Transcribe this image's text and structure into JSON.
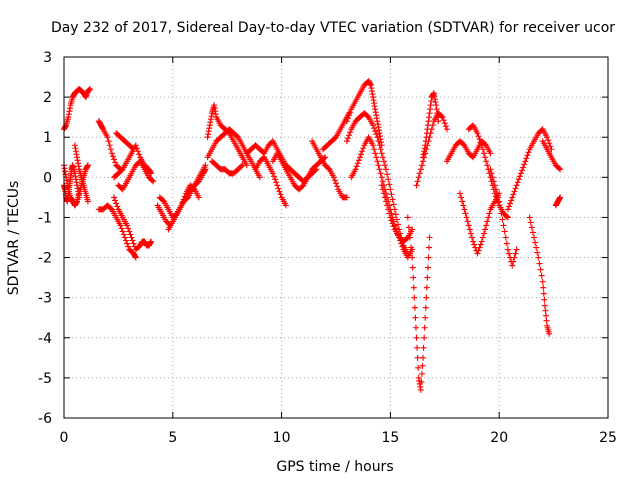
{
  "chart_data": {
    "type": "scatter",
    "title": "Day 232 of 2017, Sidereal Day-to-day VTEC variation (SDTVAR) for receiver ucor",
    "xlabel": "GPS time / hours",
    "ylabel": "SDTVAR / TECUs",
    "xlim": [
      0,
      25
    ],
    "ylim": [
      -6,
      3
    ],
    "xticks": [
      0,
      5,
      10,
      15,
      20,
      25
    ],
    "xtick_labels": [
      "0",
      "5",
      "10",
      "15",
      "20",
      "25"
    ],
    "yticks": [
      -6,
      -5,
      -4,
      -3,
      -2,
      -1,
      0,
      1,
      2,
      3
    ],
    "ytick_labels": [
      "-6",
      "-5",
      "-4",
      "-3",
      "-2",
      "-1",
      "0",
      "1",
      "2",
      "3"
    ],
    "grid": true,
    "marker": "+",
    "color": "#ff0000",
    "series": [
      {
        "name": "s1",
        "x": [
          0.0,
          0.1,
          0.2,
          0.3,
          0.4,
          0.5,
          0.6,
          0.7,
          0.8,
          0.9,
          1.0,
          1.1,
          1.2
        ],
        "y": [
          1.2,
          1.3,
          1.5,
          1.8,
          2.0,
          2.1,
          2.15,
          2.2,
          2.15,
          2.1,
          2.0,
          2.15,
          2.2
        ]
      },
      {
        "name": "s2",
        "x": [
          0.0,
          0.1,
          0.2,
          0.3,
          0.4,
          0.5,
          0.6,
          0.7,
          0.8,
          0.9,
          1.0,
          1.1
        ],
        "y": [
          0.3,
          0.0,
          -0.3,
          -0.5,
          -0.6,
          -0.7,
          -0.6,
          -0.4,
          -0.2,
          0.0,
          0.2,
          0.3
        ]
      },
      {
        "name": "s3",
        "x": [
          0.0,
          0.05,
          0.1,
          0.15,
          0.2,
          0.25,
          0.3,
          0.35,
          0.4,
          0.5,
          0.6,
          0.7
        ],
        "y": [
          -0.2,
          -0.3,
          -0.5,
          -0.6,
          -0.4,
          -0.2,
          0.0,
          0.2,
          0.3,
          0.1,
          -0.2,
          -0.5
        ]
      },
      {
        "name": "s4",
        "x": [
          0.5,
          0.6,
          0.7,
          0.8,
          0.9,
          1.0,
          1.1
        ],
        "y": [
          0.8,
          0.5,
          0.2,
          0.0,
          -0.2,
          -0.4,
          -0.6
        ]
      },
      {
        "name": "s5",
        "x": [
          1.6,
          1.7,
          1.8,
          2.0,
          2.2,
          2.4,
          2.6
        ],
        "y": [
          1.4,
          1.3,
          1.2,
          1.0,
          0.6,
          0.3,
          0.2
        ]
      },
      {
        "name": "s6",
        "x": [
          1.6,
          1.8,
          2.0,
          2.2,
          2.4,
          2.6,
          2.8,
          3.0,
          3.2,
          3.3
        ],
        "y": [
          -0.8,
          -0.8,
          -0.7,
          -0.8,
          -1.0,
          -1.2,
          -1.5,
          -1.8,
          -1.9,
          -2.0
        ]
      },
      {
        "name": "s7",
        "x": [
          2.3,
          2.5,
          2.7,
          2.9,
          3.1,
          3.3,
          3.5,
          3.6,
          3.7,
          3.8,
          3.9,
          4.0
        ],
        "y": [
          -0.5,
          -0.8,
          -1.0,
          -1.2,
          -1.5,
          -1.8,
          -1.7,
          -1.6,
          -1.6,
          -1.7,
          -1.7,
          -1.6
        ]
      },
      {
        "name": "s8",
        "x": [
          2.3,
          2.5,
          2.7,
          2.9,
          3.1,
          3.3,
          3.5,
          3.7,
          3.9,
          4.0
        ],
        "y": [
          0.0,
          0.1,
          0.2,
          0.4,
          0.6,
          0.8,
          0.5,
          0.3,
          0.2,
          0.1
        ]
      },
      {
        "name": "s9",
        "x": [
          2.4,
          2.6,
          2.8,
          3.0,
          3.2
        ],
        "y": [
          1.1,
          1.0,
          0.9,
          0.8,
          0.7
        ]
      },
      {
        "name": "s10",
        "x": [
          2.5,
          2.7,
          2.9,
          3.1,
          3.3,
          3.5,
          3.7,
          3.9,
          4.1
        ],
        "y": [
          -0.2,
          -0.3,
          -0.1,
          0.1,
          0.3,
          0.4,
          0.2,
          0.0,
          -0.1
        ]
      },
      {
        "name": "s11",
        "x": [
          4.3,
          4.5,
          4.7,
          4.9,
          5.1,
          5.3,
          5.5,
          5.7,
          5.9,
          6.1,
          6.3,
          6.5
        ],
        "y": [
          -0.7,
          -0.9,
          -1.1,
          -1.2,
          -1.0,
          -0.8,
          -0.6,
          -0.5,
          -0.3,
          -0.1,
          0.1,
          0.3
        ]
      },
      {
        "name": "s12",
        "x": [
          4.4,
          4.6,
          4.8,
          5.0,
          5.2,
          5.4,
          5.6,
          5.8,
          6.0,
          6.2,
          6.4,
          6.5
        ],
        "y": [
          -0.5,
          -0.6,
          -0.8,
          -1.0,
          -0.9,
          -0.7,
          -0.5,
          -0.3,
          -0.2,
          -0.1,
          0.1,
          0.2
        ]
      },
      {
        "name": "s13",
        "x": [
          4.8,
          5.0,
          5.2,
          5.4,
          5.6,
          5.8,
          6.0,
          6.2
        ],
        "y": [
          -1.3,
          -1.1,
          -0.9,
          -0.7,
          -0.4,
          -0.2,
          -0.3,
          -0.5
        ]
      },
      {
        "name": "s14",
        "x": [
          6.6,
          6.7,
          6.8,
          6.9,
          7.0,
          7.2,
          7.4,
          7.6,
          7.8,
          8.0,
          8.2,
          8.4
        ],
        "y": [
          1.0,
          1.3,
          1.6,
          1.8,
          1.5,
          1.3,
          1.2,
          1.1,
          0.9,
          0.7,
          0.5,
          0.3
        ]
      },
      {
        "name": "s15",
        "x": [
          6.6,
          6.8,
          7.0,
          7.2,
          7.4,
          7.6,
          7.8,
          8.0,
          8.2,
          8.4,
          8.6,
          8.8,
          9.0
        ],
        "y": [
          0.5,
          0.7,
          0.9,
          1.0,
          1.1,
          1.2,
          1.1,
          1.0,
          0.8,
          0.6,
          0.4,
          0.2,
          0.0
        ]
      },
      {
        "name": "s16",
        "x": [
          6.8,
          7.0,
          7.2,
          7.4,
          7.6,
          7.8,
          8.0,
          8.2
        ],
        "y": [
          0.4,
          0.3,
          0.2,
          0.2,
          0.1,
          0.1,
          0.2,
          0.3
        ]
      },
      {
        "name": "s17",
        "x": [
          8.4,
          8.6,
          8.8,
          9.0,
          9.2,
          9.4,
          9.6,
          9.8,
          10.0,
          10.2,
          10.4,
          10.6,
          10.8,
          11.0,
          11.2,
          11.4,
          11.6
        ],
        "y": [
          0.6,
          0.7,
          0.8,
          0.7,
          0.6,
          0.8,
          0.9,
          0.7,
          0.5,
          0.3,
          0.2,
          0.1,
          0.0,
          -0.1,
          0.0,
          0.1,
          0.2
        ]
      },
      {
        "name": "s18",
        "x": [
          8.8,
          9.0,
          9.2,
          9.4,
          9.6,
          9.8,
          10.0,
          10.2
        ],
        "y": [
          0.2,
          0.4,
          0.5,
          0.3,
          0.1,
          -0.2,
          -0.5,
          -0.7
        ]
      },
      {
        "name": "s19",
        "x": [
          9.6,
          9.8,
          10.0,
          10.2,
          10.4,
          10.6,
          10.8,
          11.0,
          11.2,
          11.4,
          11.6,
          11.8,
          12.0
        ],
        "y": [
          0.4,
          0.6,
          0.4,
          0.2,
          0.0,
          -0.2,
          -0.3,
          -0.2,
          0.0,
          0.2,
          0.3,
          0.4,
          0.5
        ]
      },
      {
        "name": "s20",
        "x": [
          11.4,
          11.6,
          11.8,
          12.0,
          12.2,
          12.4,
          12.6,
          12.8,
          13.0
        ],
        "y": [
          0.9,
          0.7,
          0.5,
          0.3,
          0.2,
          0.0,
          -0.3,
          -0.5,
          -0.5
        ]
      },
      {
        "name": "s21",
        "x": [
          11.9,
          12.1,
          12.3,
          12.5,
          12.7,
          12.9,
          13.1
        ],
        "y": [
          0.7,
          0.8,
          0.9,
          1.0,
          1.2,
          1.4,
          1.6
        ]
      },
      {
        "name": "s22",
        "x": [
          13.0,
          13.2,
          13.4,
          13.6,
          13.8,
          14.0,
          14.1,
          14.2,
          14.3,
          14.4,
          14.5,
          14.6
        ],
        "y": [
          1.4,
          1.7,
          1.9,
          2.1,
          2.3,
          2.4,
          2.3,
          2.0,
          1.7,
          1.4,
          1.1,
          0.8
        ]
      },
      {
        "name": "s23",
        "x": [
          13.0,
          13.2,
          13.4,
          13.6,
          13.8,
          14.0,
          14.2,
          14.4,
          14.6,
          14.8,
          15.0,
          15.2,
          15.4,
          15.6,
          15.8
        ],
        "y": [
          0.9,
          1.2,
          1.4,
          1.5,
          1.6,
          1.5,
          1.3,
          1.0,
          0.6,
          0.2,
          -0.3,
          -0.8,
          -1.3,
          -1.7,
          -1.9
        ]
      },
      {
        "name": "s24",
        "x": [
          13.2,
          13.4,
          13.6,
          13.8,
          14.0,
          14.2,
          14.4,
          14.6,
          14.8,
          15.0,
          15.2,
          15.4,
          15.6,
          15.8,
          16.0
        ],
        "y": [
          0.0,
          0.2,
          0.5,
          0.8,
          1.0,
          0.8,
          0.4,
          0.0,
          -0.4,
          -0.8,
          -1.2,
          -1.5,
          -1.8,
          -2.0,
          -1.8
        ]
      },
      {
        "name": "s25",
        "x": [
          14.6,
          14.8,
          15.0,
          15.2,
          15.4,
          15.6,
          15.8,
          16.0
        ],
        "y": [
          -0.2,
          -0.6,
          -1.0,
          -1.3,
          -1.5,
          -1.6,
          -1.5,
          -1.3
        ]
      },
      {
        "name": "s26",
        "x": [
          15.8,
          16.0,
          16.1,
          16.2,
          16.3,
          16.4,
          16.5,
          16.6,
          16.7,
          16.8
        ],
        "y": [
          -1.0,
          -2.0,
          -3.0,
          -4.0,
          -5.0,
          -5.3,
          -4.5,
          -3.5,
          -2.5,
          -1.5
        ]
      },
      {
        "name": "s27",
        "x": [
          16.5,
          16.6,
          16.7,
          16.8,
          16.9,
          17.0,
          17.1,
          17.2
        ],
        "y": [
          0.5,
          0.8,
          1.2,
          1.6,
          2.0,
          2.1,
          1.8,
          1.4
        ]
      },
      {
        "name": "s28",
        "x": [
          16.2,
          16.4,
          16.6,
          16.8,
          17.0,
          17.2,
          17.4,
          17.6
        ],
        "y": [
          -0.2,
          0.2,
          0.6,
          1.0,
          1.4,
          1.6,
          1.5,
          1.2
        ]
      },
      {
        "name": "s29",
        "x": [
          17.6,
          17.8,
          18.0,
          18.2,
          18.4,
          18.6,
          18.8,
          19.0,
          19.2,
          19.4,
          19.6
        ],
        "y": [
          0.4,
          0.6,
          0.8,
          0.9,
          0.8,
          0.6,
          0.5,
          0.7,
          0.9,
          0.8,
          0.6
        ]
      },
      {
        "name": "s30",
        "x": [
          18.2,
          18.4,
          18.6,
          18.8,
          19.0,
          19.2,
          19.4,
          19.6,
          19.8,
          20.0
        ],
        "y": [
          -0.4,
          -0.8,
          -1.2,
          -1.6,
          -1.9,
          -1.6,
          -1.2,
          -0.8,
          -0.6,
          -0.4
        ]
      },
      {
        "name": "s31",
        "x": [
          18.6,
          18.8,
          19.0,
          19.2,
          19.4,
          19.6,
          19.8,
          20.0,
          20.2,
          20.4
        ],
        "y": [
          1.2,
          1.3,
          1.1,
          0.8,
          0.4,
          0.0,
          -0.4,
          -0.7,
          -0.9,
          -1.0
        ]
      },
      {
        "name": "s32",
        "x": [
          19.6,
          19.8,
          20.0,
          20.2,
          20.4,
          20.6,
          20.8
        ],
        "y": [
          0.2,
          -0.2,
          -0.6,
          -1.2,
          -1.8,
          -2.2,
          -1.8
        ]
      },
      {
        "name": "s33",
        "x": [
          20.4,
          20.6,
          20.8,
          21.0,
          21.2,
          21.4,
          21.6,
          21.8,
          22.0,
          22.2,
          22.4
        ],
        "y": [
          -0.8,
          -0.5,
          -0.2,
          0.1,
          0.4,
          0.7,
          0.9,
          1.1,
          1.2,
          1.0,
          0.7
        ]
      },
      {
        "name": "s34",
        "x": [
          21.4,
          21.6,
          21.8,
          22.0,
          22.1,
          22.2,
          22.3
        ],
        "y": [
          -1.0,
          -1.5,
          -2.0,
          -2.6,
          -3.2,
          -3.7,
          -3.9
        ]
      },
      {
        "name": "s35",
        "x": [
          22.0,
          22.2,
          22.4,
          22.6,
          22.8
        ],
        "y": [
          0.9,
          0.7,
          0.5,
          0.3,
          0.2
        ]
      },
      {
        "name": "s36",
        "x": [
          22.6,
          22.7,
          22.8
        ],
        "y": [
          -0.7,
          -0.6,
          -0.5
        ]
      }
    ]
  }
}
